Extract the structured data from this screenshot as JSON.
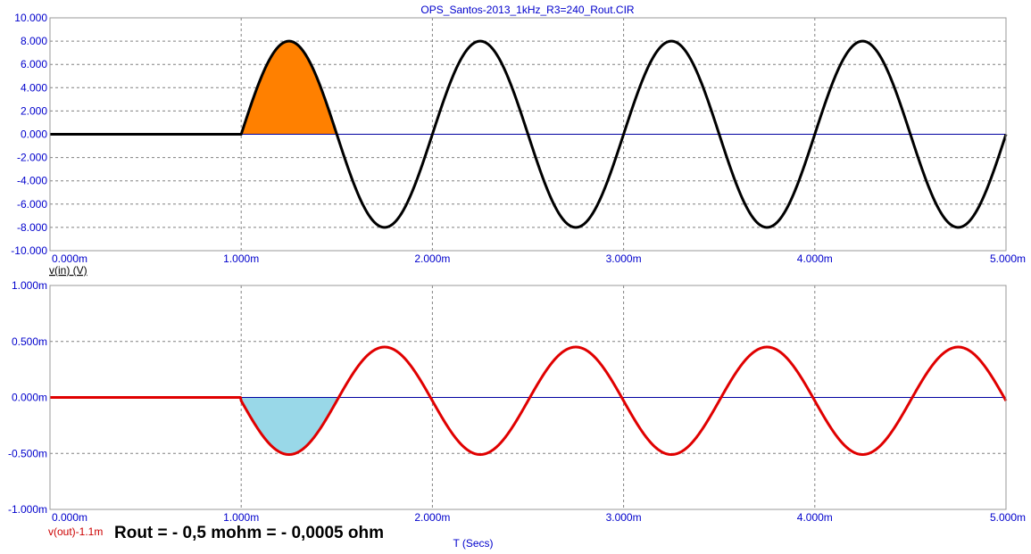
{
  "colors": {
    "axis_text": "#0000cc",
    "grid": "#808080",
    "zero_line": "#0000a0",
    "vin_trace": "#000000",
    "vout_trace": "#e00000",
    "vin_fill": "#ff8000",
    "vout_fill": "#99d8e8"
  },
  "chart_data": [
    {
      "type": "line",
      "title": "OPS_Santos-2013_1kHz_R3=240_Rout.CIR",
      "trace_label": "v(in) (V)",
      "xlim": [
        0,
        0.005
      ],
      "ylim": [
        -10,
        10
      ],
      "x_ticks": [
        "0.000m",
        "1.000m",
        "2.000m",
        "3.000m",
        "4.000m",
        "5.000m"
      ],
      "y_ticks": [
        "10.000",
        "8.000",
        "6.000",
        "4.000",
        "2.000",
        "0.000",
        "-2.000",
        "-4.000",
        "-6.000",
        "-8.000",
        "-10.000"
      ],
      "grid": true,
      "series": [
        {
          "name": "v(in)",
          "start": 0.001,
          "amplitude": 8,
          "frequency": 1000,
          "phase_deg": 0,
          "shaded_interval": [
            0.001,
            0.0015
          ]
        }
      ]
    },
    {
      "type": "line",
      "trace_label": "v(out)-1.1m",
      "xlabel": "T (Secs)",
      "xlim": [
        0,
        0.005
      ],
      "ylim": [
        -1.0,
        1.0
      ],
      "x_ticks": [
        "0.000m",
        "1.000m",
        "2.000m",
        "3.000m",
        "4.000m",
        "5.000m"
      ],
      "y_ticks": [
        "1.000m",
        "0.500m",
        "0.000m",
        "-0.500m",
        "-1.000m"
      ],
      "grid": true,
      "series": [
        {
          "name": "v(out)-1.1m",
          "start": 0.001,
          "amplitude": 0.48,
          "offset": -0.03,
          "frequency": 1000,
          "phase_deg": 180,
          "shaded_interval": [
            0.001,
            0.0015
          ]
        }
      ],
      "annotation": "Rout = - 0,5 mohm = - 0,0005 ohm"
    }
  ]
}
